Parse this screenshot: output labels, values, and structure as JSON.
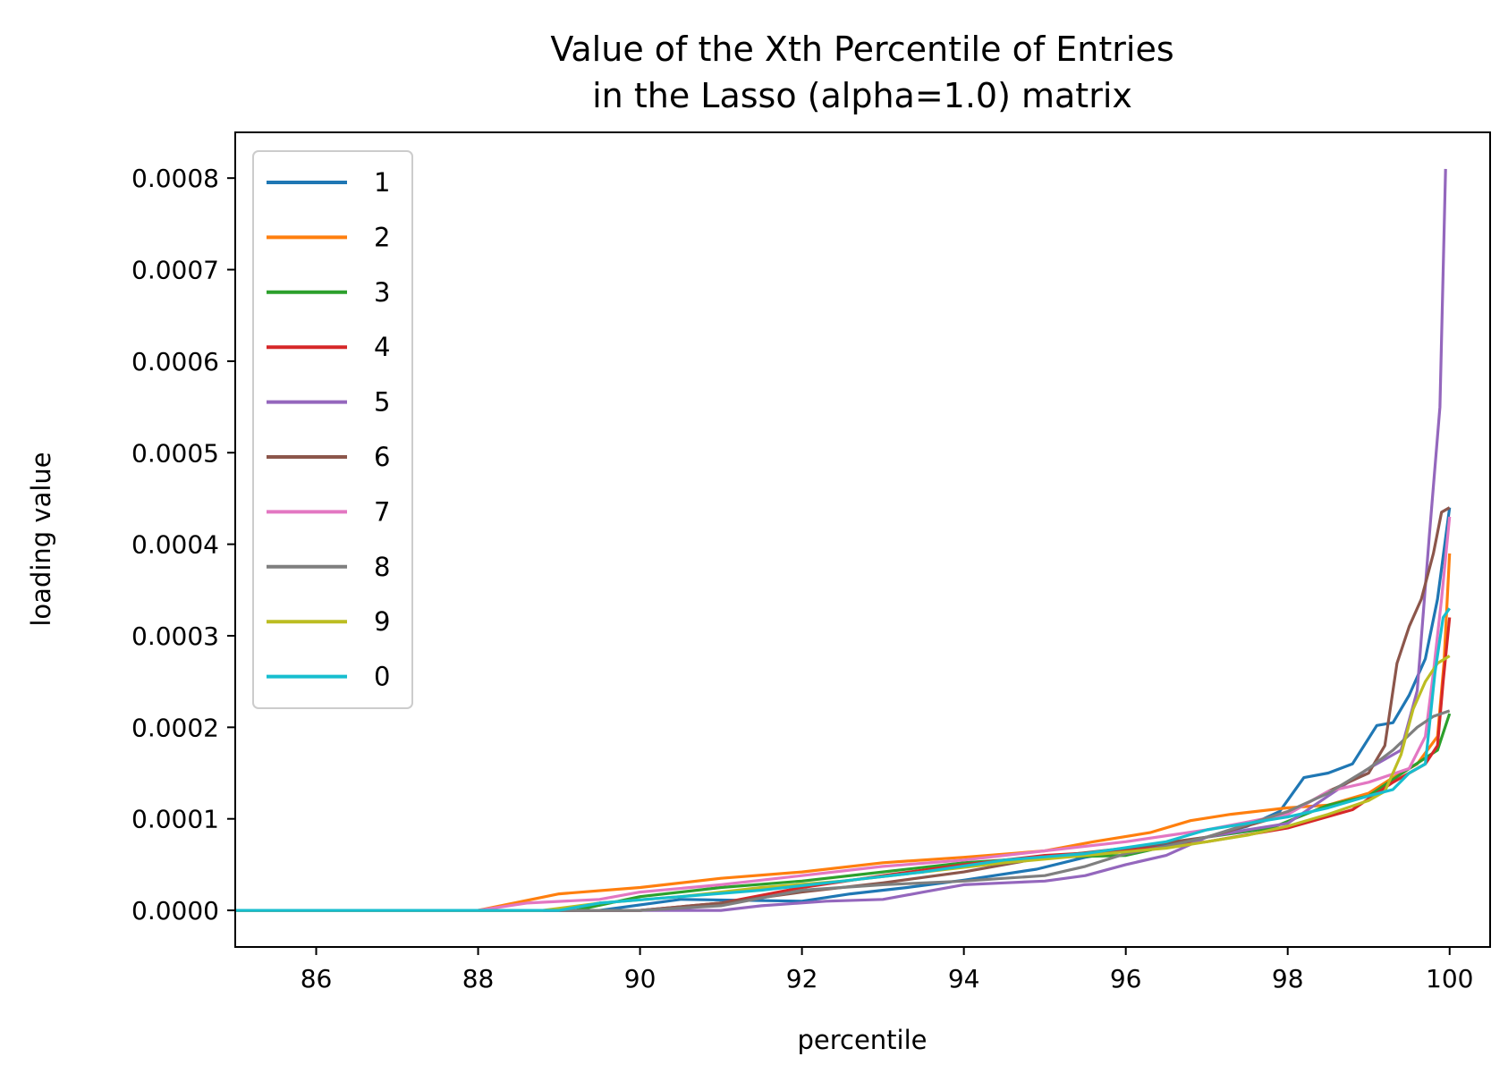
{
  "chart_data": {
    "type": "line",
    "title": [
      "Value of the Xth Percentile of Entries",
      "in the Lasso (alpha=1.0) matrix"
    ],
    "xlabel": "percentile",
    "ylabel": "loading value",
    "xlim": [
      85,
      100.5
    ],
    "ylim": [
      -4e-05,
      0.00085
    ],
    "xticks": [
      86,
      88,
      90,
      92,
      94,
      96,
      98,
      100
    ],
    "xtick_labels": [
      "86",
      "88",
      "90",
      "92",
      "94",
      "96",
      "98",
      "100"
    ],
    "yticks": [
      0,
      0.0001,
      0.0002,
      0.0003,
      0.0004,
      0.0005,
      0.0006,
      0.0007,
      0.0008
    ],
    "ytick_labels": [
      "0.0000",
      "0.0001",
      "0.0002",
      "0.0003",
      "0.0004",
      "0.0005",
      "0.0006",
      "0.0007",
      "0.0008"
    ],
    "grid": false,
    "legend_position": "top-left",
    "series": [
      {
        "name": "1",
        "color": "#1f77b4",
        "points": [
          [
            85,
            0
          ],
          [
            89.5,
            0
          ],
          [
            90.5,
            1.2e-05
          ],
          [
            92,
            1e-05
          ],
          [
            92.6,
            1.8e-05
          ],
          [
            93.3,
            2.5e-05
          ],
          [
            94,
            3.3e-05
          ],
          [
            94.9,
            4.5e-05
          ],
          [
            95.5,
            5.8e-05
          ],
          [
            96.3,
            7e-05
          ],
          [
            97,
            8e-05
          ],
          [
            97.5,
            9.2e-05
          ],
          [
            97.9,
            0.000108
          ],
          [
            98.2,
            0.000145
          ],
          [
            98.5,
            0.00015
          ],
          [
            98.8,
            0.00016
          ],
          [
            99.1,
            0.000202
          ],
          [
            99.3,
            0.000205
          ],
          [
            99.5,
            0.000235
          ],
          [
            99.7,
            0.000275
          ],
          [
            99.85,
            0.00034
          ],
          [
            100,
            0.00044
          ]
        ]
      },
      {
        "name": "2",
        "color": "#ff7f0e",
        "points": [
          [
            85,
            0
          ],
          [
            88,
            0
          ],
          [
            89,
            1.8e-05
          ],
          [
            90,
            2.5e-05
          ],
          [
            91,
            3.5e-05
          ],
          [
            92,
            4.2e-05
          ],
          [
            93,
            5.2e-05
          ],
          [
            94,
            5.8e-05
          ],
          [
            95,
            6.5e-05
          ],
          [
            95.6,
            7.5e-05
          ],
          [
            96.3,
            8.5e-05
          ],
          [
            96.8,
            9.8e-05
          ],
          [
            97.3,
            0.000105
          ],
          [
            98,
            0.000112
          ],
          [
            98.5,
            0.000115
          ],
          [
            99,
            0.000128
          ],
          [
            99.3,
            0.000145
          ],
          [
            99.6,
            0.00016
          ],
          [
            99.85,
            0.00019
          ],
          [
            99.93,
            0.00027
          ],
          [
            100,
            0.00039
          ]
        ]
      },
      {
        "name": "3",
        "color": "#2ca02c",
        "points": [
          [
            85,
            0
          ],
          [
            89.2,
            0
          ],
          [
            90,
            1.5e-05
          ],
          [
            91,
            2.5e-05
          ],
          [
            92,
            3.2e-05
          ],
          [
            93,
            4.2e-05
          ],
          [
            94,
            5.2e-05
          ],
          [
            95,
            5.8e-05
          ],
          [
            96,
            6e-05
          ],
          [
            97,
            8e-05
          ],
          [
            97.8,
            9e-05
          ],
          [
            98.5,
            0.000115
          ],
          [
            99,
            0.000125
          ],
          [
            99.5,
            0.000155
          ],
          [
            99.85,
            0.000175
          ],
          [
            100,
            0.000215
          ]
        ]
      },
      {
        "name": "4",
        "color": "#d62728",
        "points": [
          [
            85,
            0
          ],
          [
            90,
            0
          ],
          [
            91,
            8e-06
          ],
          [
            92,
            2.5e-05
          ],
          [
            93,
            3.8e-05
          ],
          [
            94,
            5e-05
          ],
          [
            95,
            6e-05
          ],
          [
            96,
            6.5e-05
          ],
          [
            97,
            7.5e-05
          ],
          [
            98,
            9e-05
          ],
          [
            98.8,
            0.00011
          ],
          [
            99.3,
            0.00014
          ],
          [
            99.7,
            0.00016
          ],
          [
            99.85,
            0.00018
          ],
          [
            99.92,
            0.00025
          ],
          [
            100,
            0.00032
          ]
        ]
      },
      {
        "name": "5",
        "color": "#9467bd",
        "points": [
          [
            85,
            0
          ],
          [
            91,
            0
          ],
          [
            91.5,
            5e-06
          ],
          [
            92.3,
            1e-05
          ],
          [
            93,
            1.2e-05
          ],
          [
            93.5,
            2e-05
          ],
          [
            94,
            2.8e-05
          ],
          [
            94.5,
            3e-05
          ],
          [
            95,
            3.2e-05
          ],
          [
            95.5,
            3.8e-05
          ],
          [
            96,
            5e-05
          ],
          [
            96.5,
            6e-05
          ],
          [
            97,
            8e-05
          ],
          [
            97.5,
            8.8e-05
          ],
          [
            98,
            9.5e-05
          ],
          [
            98.5,
            0.000125
          ],
          [
            99,
            0.000155
          ],
          [
            99.4,
            0.000175
          ],
          [
            99.6,
            0.00024
          ],
          [
            99.75,
            0.00041
          ],
          [
            99.88,
            0.00055
          ],
          [
            99.95,
            0.00081
          ]
        ]
      },
      {
        "name": "6",
        "color": "#8c564b",
        "points": [
          [
            85,
            0
          ],
          [
            90,
            0
          ],
          [
            91,
            8e-06
          ],
          [
            92,
            2e-05
          ],
          [
            93,
            3e-05
          ],
          [
            94,
            4.2e-05
          ],
          [
            95,
            5.8e-05
          ],
          [
            96,
            6.8e-05
          ],
          [
            97,
            8e-05
          ],
          [
            98,
            0.000105
          ],
          [
            98.5,
            0.00013
          ],
          [
            99,
            0.00015
          ],
          [
            99.2,
            0.00018
          ],
          [
            99.35,
            0.00027
          ],
          [
            99.5,
            0.00031
          ],
          [
            99.65,
            0.00034
          ],
          [
            99.8,
            0.00039
          ],
          [
            99.9,
            0.000435
          ],
          [
            100,
            0.00044
          ]
        ]
      },
      {
        "name": "7",
        "color": "#e377c2",
        "points": [
          [
            85,
            0
          ],
          [
            88,
            0
          ],
          [
            88.6,
            8e-06
          ],
          [
            89.5,
            1.2e-05
          ],
          [
            90,
            2e-05
          ],
          [
            91,
            2.8e-05
          ],
          [
            92,
            3.8e-05
          ],
          [
            93,
            4.8e-05
          ],
          [
            94,
            5.5e-05
          ],
          [
            95,
            6.5e-05
          ],
          [
            96,
            7.5e-05
          ],
          [
            97,
            8.8e-05
          ],
          [
            98,
            0.000105
          ],
          [
            98.5,
            0.00013
          ],
          [
            99,
            0.00014
          ],
          [
            99.5,
            0.000155
          ],
          [
            99.7,
            0.00019
          ],
          [
            99.8,
            0.00026
          ],
          [
            99.9,
            0.00034
          ],
          [
            100,
            0.00043
          ]
        ]
      },
      {
        "name": "8",
        "color": "#7f7f7f",
        "points": [
          [
            85,
            0
          ],
          [
            90,
            0
          ],
          [
            91,
            5e-06
          ],
          [
            92,
            2.2e-05
          ],
          [
            93,
            2.8e-05
          ],
          [
            94,
            3.2e-05
          ],
          [
            94.5,
            3.5e-05
          ],
          [
            95,
            3.8e-05
          ],
          [
            95.5,
            4.8e-05
          ],
          [
            96,
            6.2e-05
          ],
          [
            96.5,
            7e-05
          ],
          [
            97,
            8e-05
          ],
          [
            98,
            0.000108
          ],
          [
            98.5,
            0.000128
          ],
          [
            99,
            0.000155
          ],
          [
            99.3,
            0.000175
          ],
          [
            99.6,
            0.0002
          ],
          [
            99.8,
            0.000212
          ],
          [
            100,
            0.000218
          ]
        ]
      },
      {
        "name": "9",
        "color": "#bcbd22",
        "points": [
          [
            85,
            0
          ],
          [
            88.8,
            0
          ],
          [
            89.5,
            8e-06
          ],
          [
            90.5,
            1.5e-05
          ],
          [
            91.5,
            2.5e-05
          ],
          [
            92.5,
            3.2e-05
          ],
          [
            93.5,
            4.2e-05
          ],
          [
            94.5,
            5.2e-05
          ],
          [
            95.5,
            6e-05
          ],
          [
            96.5,
            6.8e-05
          ],
          [
            97.5,
            8.2e-05
          ],
          [
            98,
            9.2e-05
          ],
          [
            98.5,
            0.000105
          ],
          [
            99,
            0.00012
          ],
          [
            99.2,
            0.00013
          ],
          [
            99.4,
            0.00017
          ],
          [
            99.55,
            0.00022
          ],
          [
            99.7,
            0.00025
          ],
          [
            99.85,
            0.00027
          ],
          [
            100,
            0.000278
          ]
        ]
      },
      {
        "name": "0",
        "color": "#17becf",
        "points": [
          [
            85,
            0
          ],
          [
            89,
            0
          ],
          [
            89.5,
            8e-06
          ],
          [
            90.5,
            1.5e-05
          ],
          [
            91.5,
            2.2e-05
          ],
          [
            92.5,
            3.2e-05
          ],
          [
            93.5,
            4.2e-05
          ],
          [
            94.5,
            5.5e-05
          ],
          [
            95.5,
            6.2e-05
          ],
          [
            96.5,
            7.5e-05
          ],
          [
            97,
            8.8e-05
          ],
          [
            97.5,
            9.5e-05
          ],
          [
            98,
            0.000102
          ],
          [
            98.5,
            0.000112
          ],
          [
            99,
            0.000125
          ],
          [
            99.3,
            0.000132
          ],
          [
            99.5,
            0.00015
          ],
          [
            99.7,
            0.00016
          ],
          [
            99.82,
            0.00026
          ],
          [
            99.92,
            0.00032
          ],
          [
            100,
            0.00033
          ]
        ]
      }
    ]
  }
}
